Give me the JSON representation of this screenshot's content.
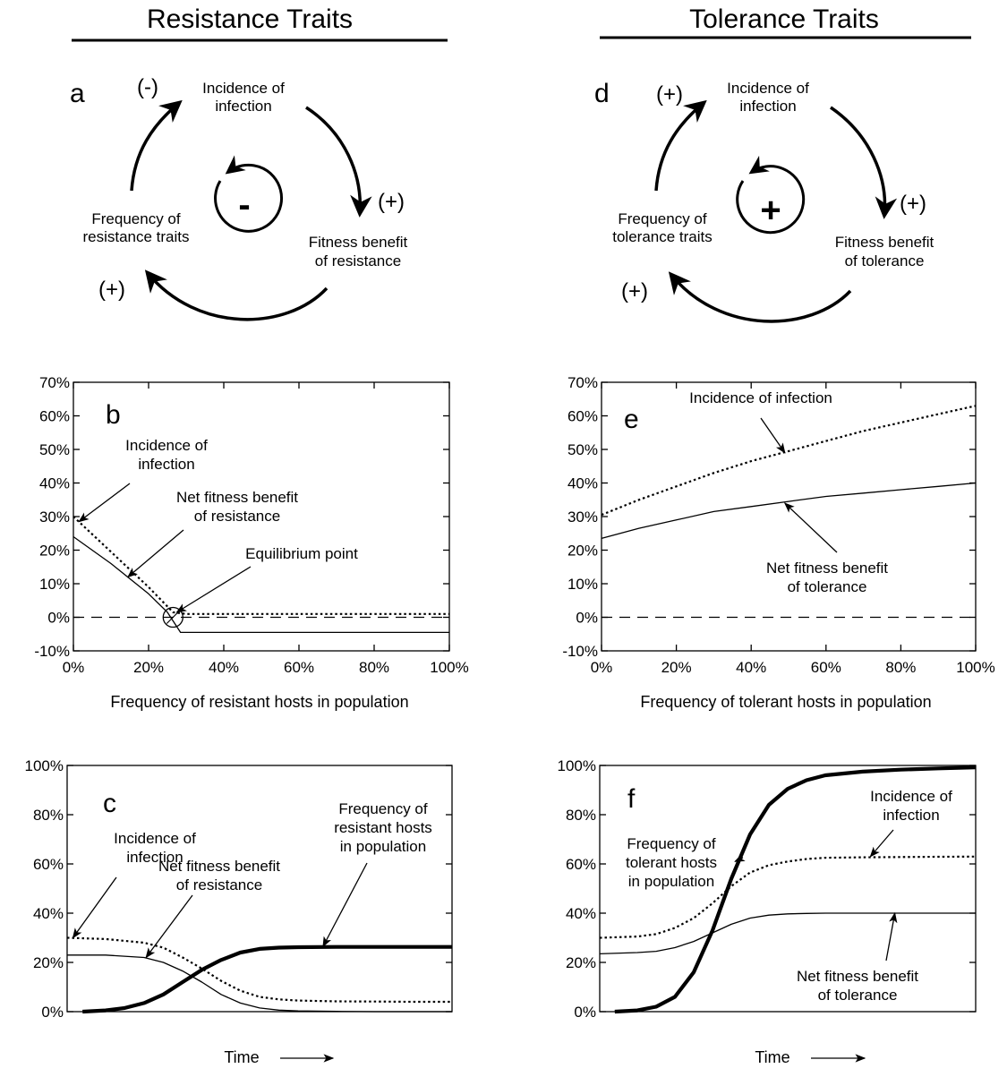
{
  "headers": {
    "left": "Resistance Traits",
    "right": "Tolerance Traits"
  },
  "loops": {
    "a": {
      "letter": "a",
      "node_top": [
        "Incidence of",
        "infection"
      ],
      "node_right": [
        "Fitness benefit",
        "of resistance"
      ],
      "node_left": [
        "Frequency of",
        "resistance traits"
      ],
      "sign_top": "(-)",
      "sign_right": "(+)",
      "sign_left": "(+)",
      "center_sign": "-"
    },
    "d": {
      "letter": "d",
      "node_top": [
        "Incidence of",
        "infection"
      ],
      "node_right": [
        "Fitness benefit",
        "of tolerance"
      ],
      "node_left": [
        "Frequency of",
        "tolerance traits"
      ],
      "sign_top": "(+)",
      "sign_right": "(+)",
      "sign_left": "(+)",
      "center_sign": "+"
    }
  },
  "chart_data": [
    {
      "id": "b",
      "type": "line",
      "panel_letter": "b",
      "xlabel": "Frequency of resistant hosts in population",
      "ylim": [
        -10,
        70
      ],
      "y_ticks": [
        "-10%",
        "0%",
        "10%",
        "20%",
        "30%",
        "40%",
        "50%",
        "60%",
        "70%"
      ],
      "y_tick_values": [
        -10,
        0,
        10,
        20,
        30,
        40,
        50,
        60,
        70
      ],
      "xlim": [
        0,
        100
      ],
      "x_ticks": [
        "0%",
        "20%",
        "40%",
        "60%",
        "80%",
        "100%"
      ],
      "x_tick_values": [
        0,
        20,
        40,
        60,
        80,
        100
      ],
      "series": [
        {
          "style": "dotted",
          "x": [
            0,
            10,
            20,
            26.5,
            30,
            40,
            60,
            80,
            100
          ],
          "y": [
            30,
            19.5,
            9,
            1.5,
            1,
            1,
            1,
            1,
            1
          ]
        },
        {
          "style": "solid",
          "x": [
            0,
            10,
            20,
            25,
            28.5,
            30,
            40,
            60,
            80,
            100
          ],
          "y": [
            24,
            16,
            7,
            1.5,
            -4.5,
            -4.5,
            -4.5,
            -4.5,
            -4.5,
            -4.5
          ]
        },
        {
          "style": "dashed",
          "x": [
            0,
            100
          ],
          "y": [
            0,
            0
          ]
        }
      ],
      "equilibrium": {
        "x": 26.5,
        "y": 0
      },
      "annotations": [
        {
          "text": [
            "Incidence of",
            "infection"
          ],
          "point": [
            1.5,
            28.5
          ]
        },
        {
          "text": [
            "Net fitness benefit",
            "of resistance"
          ],
          "point": [
            14.5,
            12
          ]
        },
        {
          "text": [
            "Equilibrium point"
          ],
          "point": [
            27.5,
            1.5
          ]
        }
      ]
    },
    {
      "id": "e",
      "type": "line",
      "panel_letter": "e",
      "xlabel": "Frequency of tolerant hosts in population",
      "ylim": [
        -10,
        70
      ],
      "y_ticks": [
        "-10%",
        "0%",
        "10%",
        "20%",
        "30%",
        "40%",
        "50%",
        "60%",
        "70%"
      ],
      "y_tick_values": [
        -10,
        0,
        10,
        20,
        30,
        40,
        50,
        60,
        70
      ],
      "xlim": [
        0,
        100
      ],
      "x_ticks": [
        "0%",
        "20%",
        "40%",
        "60%",
        "80%",
        "100%"
      ],
      "x_tick_values": [
        0,
        20,
        40,
        60,
        80,
        100
      ],
      "series": [
        {
          "style": "dotted",
          "x": [
            0,
            10,
            20,
            30,
            40,
            50,
            60,
            70,
            80,
            90,
            100
          ],
          "y": [
            30.5,
            35,
            39,
            43,
            46.5,
            49.5,
            52.5,
            55.5,
            58,
            60.5,
            63
          ]
        },
        {
          "style": "solid",
          "x": [
            0,
            10,
            20,
            30,
            40,
            50,
            60,
            70,
            80,
            90,
            100
          ],
          "y": [
            23.5,
            26.5,
            29,
            31.5,
            33,
            34.5,
            36,
            37,
            38,
            39,
            40
          ]
        },
        {
          "style": "dashed",
          "x": [
            0,
            100
          ],
          "y": [
            0,
            0
          ]
        }
      ],
      "annotations": [
        {
          "text": [
            "Incidence of infection"
          ],
          "point": [
            49,
            49
          ]
        },
        {
          "text": [
            "Net fitness benefit",
            "of tolerance"
          ],
          "point": [
            49,
            34
          ]
        }
      ]
    },
    {
      "id": "c",
      "type": "line",
      "panel_letter": "c",
      "xlabel": "Time",
      "ylim": [
        0,
        100
      ],
      "y_ticks": [
        "0%",
        "20%",
        "40%",
        "60%",
        "80%",
        "100%"
      ],
      "y_tick_values": [
        0,
        20,
        40,
        60,
        80,
        100
      ],
      "xlim": [
        0,
        100
      ],
      "series": [
        {
          "style": "dotted",
          "x": [
            0,
            10,
            20,
            25,
            30,
            35,
            40,
            45,
            50,
            55,
            60,
            70,
            80,
            90,
            100
          ],
          "y": [
            30,
            29.5,
            28,
            26,
            22,
            17.5,
            12.5,
            8.5,
            6,
            5,
            4.5,
            4.2,
            4.1,
            4,
            4
          ]
        },
        {
          "style": "solid",
          "x": [
            0,
            10,
            20,
            25,
            30,
            35,
            40,
            45,
            50,
            55,
            60,
            70,
            80,
            100
          ],
          "y": [
            23,
            23,
            22,
            20,
            16.5,
            12,
            7,
            3.5,
            1.5,
            0.6,
            0.3,
            0.1,
            0,
            0
          ]
        },
        {
          "style": "thick",
          "x": [
            4,
            10,
            15,
            20,
            25,
            30,
            35,
            40,
            45,
            50,
            55,
            60,
            70,
            80,
            100
          ],
          "y": [
            0,
            0.5,
            1.5,
            3.5,
            7,
            12,
            17,
            21,
            24,
            25.5,
            26,
            26.2,
            26.3,
            26.3,
            26.3
          ]
        }
      ],
      "annotations": [
        {
          "text": [
            "Incidence of",
            "infection"
          ],
          "point": [
            1.5,
            30
          ]
        },
        {
          "text": [
            "Net fitness benefit",
            "of resistance"
          ],
          "point": [
            20.5,
            22
          ]
        },
        {
          "text": [
            "Frequency of",
            "resistant hosts",
            "in population"
          ],
          "point": [
            66.5,
            26.5
          ]
        }
      ]
    },
    {
      "id": "f",
      "type": "line",
      "panel_letter": "f",
      "xlabel": "Time",
      "ylim": [
        0,
        100
      ],
      "y_ticks": [
        "0%",
        "20%",
        "40%",
        "60%",
        "80%",
        "100%"
      ],
      "y_tick_values": [
        0,
        20,
        40,
        60,
        80,
        100
      ],
      "xlim": [
        0,
        100
      ],
      "series": [
        {
          "style": "dotted",
          "x": [
            0,
            10,
            15,
            20,
            25,
            30,
            35,
            40,
            45,
            50,
            55,
            60,
            70,
            80,
            90,
            100
          ],
          "y": [
            30,
            30.5,
            31.5,
            34,
            38,
            44,
            51,
            56.5,
            59.5,
            61,
            62,
            62.5,
            62.7,
            62.8,
            62.9,
            63
          ]
        },
        {
          "style": "solid",
          "x": [
            0,
            10,
            15,
            20,
            25,
            30,
            35,
            40,
            45,
            50,
            55,
            60,
            70,
            80,
            90,
            100
          ],
          "y": [
            23.5,
            24,
            24.5,
            26,
            28.5,
            32,
            35.5,
            38,
            39.2,
            39.7,
            39.9,
            40,
            40,
            40,
            40,
            40
          ]
        },
        {
          "style": "thick",
          "x": [
            4,
            10,
            15,
            20,
            25,
            30,
            35,
            40,
            45,
            50,
            55,
            60,
            70,
            80,
            90,
            100
          ],
          "y": [
            0,
            0.5,
            2,
            6,
            16,
            33,
            54,
            72,
            84,
            90.5,
            94,
            96,
            97.5,
            98.3,
            98.8,
            99.2
          ]
        }
      ],
      "annotations": [
        {
          "text": [
            "Incidence of",
            "infection"
          ],
          "point": [
            72,
            63
          ]
        },
        {
          "text": [
            "Frequency of",
            "tolerant hosts",
            "in population"
          ],
          "point": [
            36,
            61
          ]
        },
        {
          "text": [
            "Net fitness benefit",
            "of tolerance"
          ],
          "point": [
            78.5,
            40
          ]
        }
      ]
    }
  ]
}
